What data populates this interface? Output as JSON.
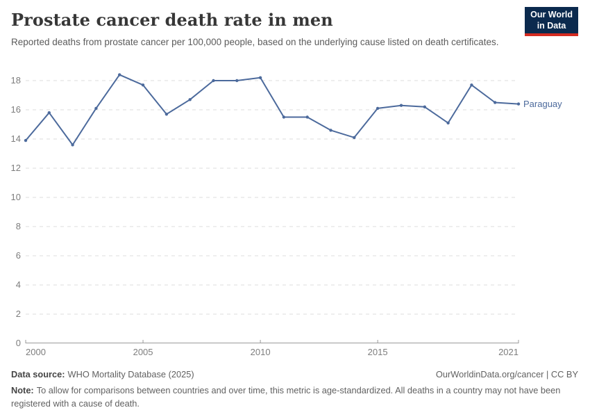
{
  "header": {
    "title": "Prostate cancer death rate in men",
    "subtitle": "Reported deaths from prostate cancer per 100,000 people, based on the underlying cause listed on death certificates.",
    "logo": {
      "line1": "Our World",
      "line2": "in Data",
      "bg_color": "#0b2a4e",
      "accent_color": "#d42b21"
    }
  },
  "chart_data": {
    "type": "line",
    "title": "Prostate cancer death rate in men",
    "xlabel": "",
    "ylabel": "Reported deaths from prostate cancer per 100,000 people",
    "grid": true,
    "xlim": [
      2000,
      2021
    ],
    "ylim": [
      0,
      18.76
    ],
    "x_ticks": [
      2000,
      2005,
      2010,
      2015,
      2021
    ],
    "y_ticks": [
      0,
      2,
      4,
      6,
      8,
      10,
      12,
      14,
      16,
      18
    ],
    "series": [
      {
        "name": "Paraguay",
        "color": "#4c6a9c",
        "x": [
          2000,
          2001,
          2002,
          2003,
          2004,
          2005,
          2006,
          2007,
          2008,
          2009,
          2010,
          2011,
          2012,
          2013,
          2014,
          2015,
          2016,
          2017,
          2018,
          2019,
          2020,
          2021
        ],
        "values": [
          13.9,
          15.8,
          13.6,
          16.1,
          18.4,
          17.7,
          15.7,
          16.7,
          18.0,
          18.0,
          18.2,
          15.5,
          15.5,
          14.6,
          14.1,
          16.1,
          16.3,
          16.2,
          15.1,
          17.7,
          16.5,
          16.4
        ]
      }
    ],
    "legend_position": "end-of-line-label",
    "gridline_color": "#dcdcdc",
    "axis_color": "#9a9a9a"
  },
  "footer": {
    "source_label": "Data source:",
    "source_text": "WHO Mortality Database (2025)",
    "link_text": "OurWorldinData.org/cancer | CC BY",
    "note_label": "Note:",
    "note_text": "To allow for comparisons between countries and over time, this metric is age-standardized. All deaths in a country may not have been registered with a cause of death."
  }
}
